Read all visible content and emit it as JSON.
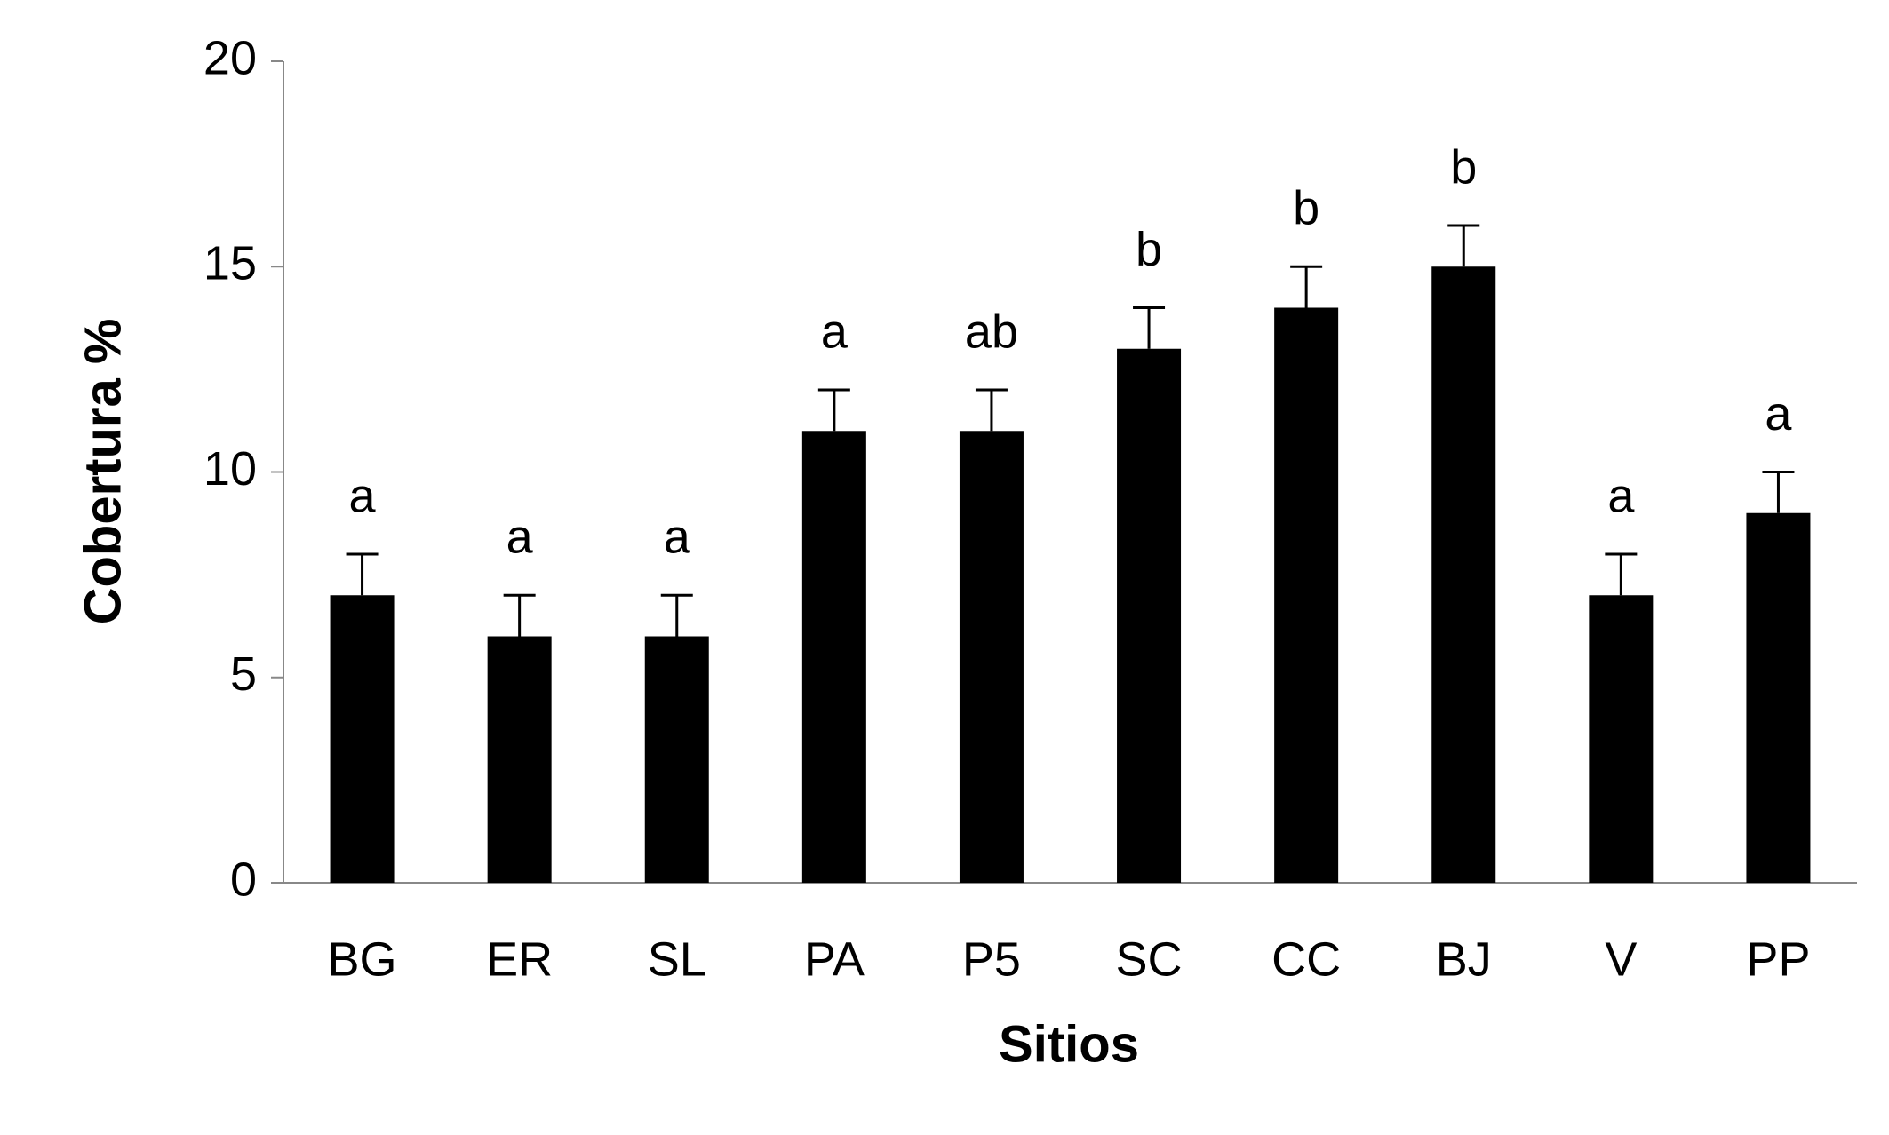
{
  "chart_data": {
    "type": "bar",
    "x_label": "Sitios",
    "y_label": "Cobertura %",
    "categories": [
      "BG",
      "ER",
      "SL",
      "PA",
      "P5",
      "SC",
      "CC",
      "BJ",
      "V",
      "PP"
    ],
    "values": [
      7,
      6,
      6,
      11,
      11,
      13,
      14,
      15,
      7,
      9
    ],
    "errors": [
      1,
      1,
      1,
      1,
      1,
      1,
      1,
      1,
      1,
      1
    ],
    "annotations": [
      "a",
      "a",
      "a",
      "a",
      "ab",
      "b",
      "b",
      "b",
      "a",
      "a"
    ],
    "color": "#000000",
    "ylim": [
      0,
      20
    ],
    "yticks": [
      0,
      5,
      10,
      15,
      20
    ],
    "grid": false
  }
}
